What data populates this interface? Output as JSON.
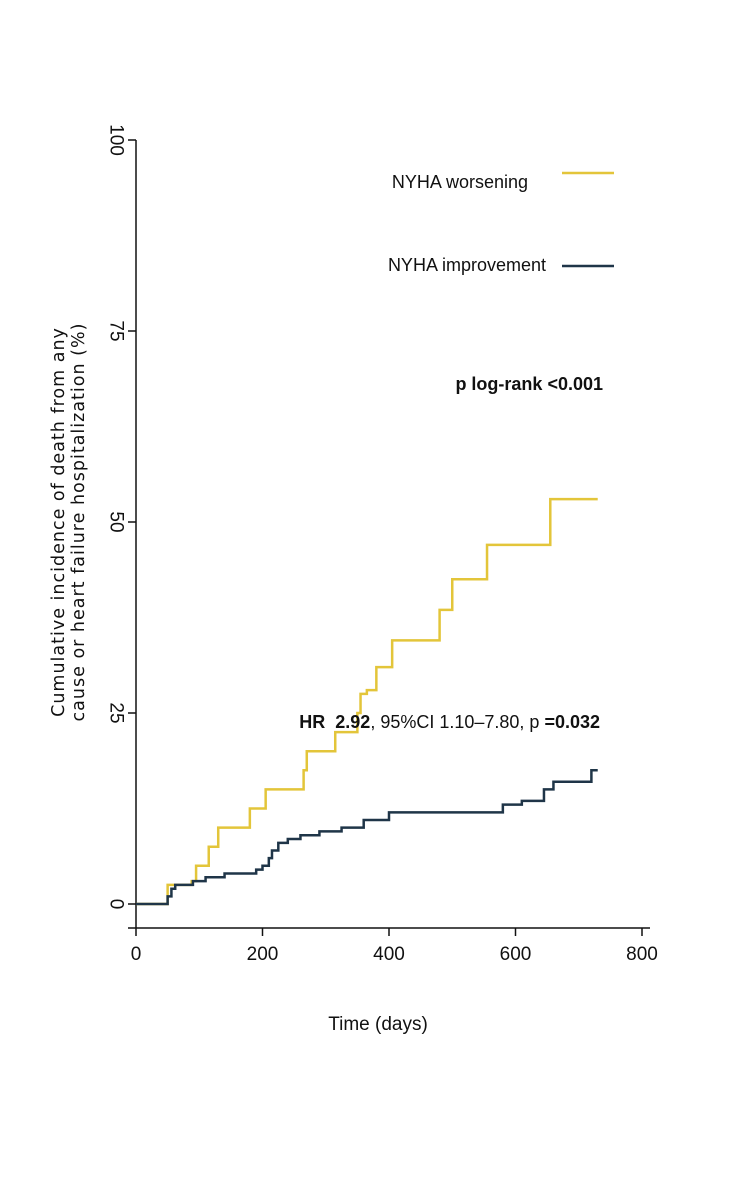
{
  "chart_data": {
    "type": "line",
    "step": true,
    "xlabel": "Time (days)",
    "ylabel_lines": [
      "Cumulative incidence of death from any",
      "cause or heart failure hospitalization (%)"
    ],
    "xlim": [
      0,
      800
    ],
    "ylim": [
      0,
      100
    ],
    "xticks": [
      0,
      200,
      400,
      600,
      800
    ],
    "yticks": [
      0,
      25,
      50,
      75,
      100
    ],
    "grid": false,
    "legend_position": "top-right",
    "series": [
      {
        "name": "NYHA worsening",
        "color": "#e3c53a",
        "x": [
          0,
          50,
          88,
          95,
          115,
          130,
          180,
          205,
          265,
          270,
          315,
          350,
          355,
          365,
          380,
          405,
          480,
          500,
          555,
          655,
          730
        ],
        "y": [
          0,
          2.5,
          3,
          5,
          7.5,
          10,
          12.5,
          15,
          17.5,
          20,
          22.5,
          25,
          27.5,
          28,
          31,
          34.5,
          38.5,
          42.5,
          47,
          53,
          53
        ]
      },
      {
        "name": "NYHA improvement",
        "color": "#1f3548",
        "x": [
          0,
          50,
          56,
          62,
          90,
          100,
          110,
          140,
          190,
          200,
          210,
          215,
          225,
          240,
          260,
          290,
          325,
          360,
          400,
          580,
          610,
          645,
          660,
          720,
          730
        ],
        "y": [
          0,
          1,
          2,
          2.5,
          3,
          3,
          3.5,
          4,
          4.5,
          5,
          6,
          7,
          8,
          8.5,
          9,
          9.5,
          10,
          11,
          12,
          13,
          13.5,
          15,
          16,
          17.5,
          17.5
        ]
      }
    ],
    "annotations": {
      "pvalue": "p log-rank <0.001",
      "hr_label": "HR",
      "hr_value": "2.92",
      "ci_text": ", 95%CI 1.10–7.80, p ",
      "p_value": "=0.032"
    }
  }
}
